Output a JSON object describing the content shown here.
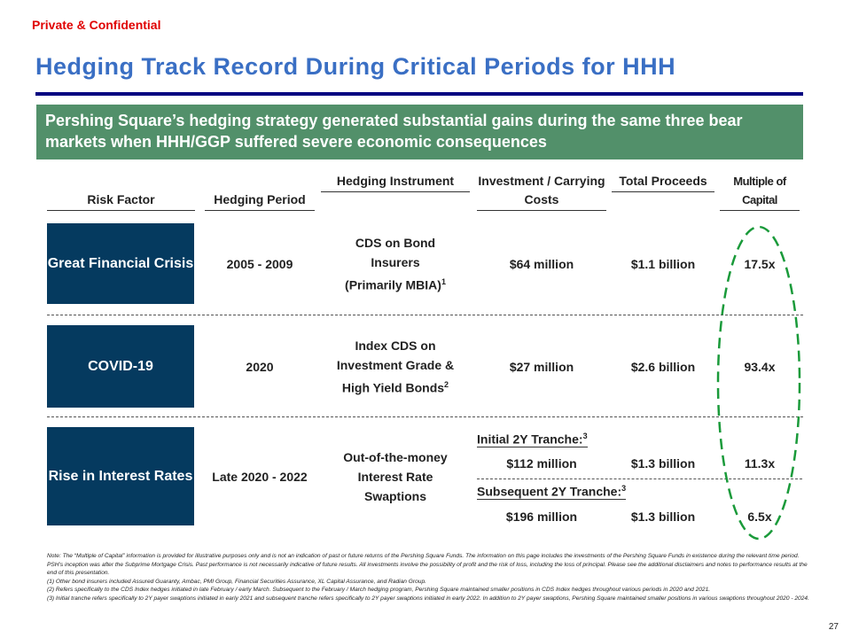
{
  "confidential": "Private & Confidential",
  "title": "Hedging Track Record During Critical Periods for HHH",
  "banner": "Pershing Square’s hedging strategy generated substantial gains during the same three bear markets when HHH/GGP suffered severe economic consequences",
  "headers": {
    "risk": "Risk Factor",
    "period": "Hedging Period",
    "instrument": "Hedging Instrument",
    "investment": "Investment / Carrying Costs",
    "proceeds": "Total Proceeds",
    "multiple": "Multiple of Capital"
  },
  "rows": [
    {
      "risk": "Great Financial Crisis",
      "period": "2005 - 2009",
      "instrument": "CDS on Bond Insurers",
      "instrument2": "(Primarily MBIA)",
      "note": "1",
      "investment": "$64 million",
      "proceeds": "$1.1 billion",
      "multiple": "17.5x"
    },
    {
      "risk": "COVID-19",
      "period": "2020",
      "instrument": "Index CDS on Investment Grade & High Yield Bonds",
      "note": "2",
      "investment": "$27 million",
      "proceeds": "$2.6 billion",
      "multiple": "93.4x"
    },
    {
      "risk": "Rise in Interest Rates",
      "period": "Late 2020 - 2022",
      "instrument": "Out-of-the-money Interest Rate Swaptions",
      "tranches": [
        {
          "label": "Initial 2Y Tranche:",
          "note": "3",
          "investment": "$112 million",
          "proceeds": "$1.3 billion",
          "multiple": "11.3x"
        },
        {
          "label": "Subsequent 2Y Tranche:",
          "note": "3",
          "investment": "$196 million",
          "proceeds": "$1.3 billion",
          "multiple": "6.5x"
        }
      ]
    }
  ],
  "notes": [
    "Note: The “Multiple of Capital” information is provided for illustrative purposes only and is not an indication of past or future returns of the Pershing Square Funds.  The information on this page includes the investments of the Pershing Square Funds in existence during the relevant time period. PSH’s inception was after the Subprime Mortgage Crisis. Past performance is not necessarily indicative of future results. All investments involve the possibility of profit and the risk of loss, including the loss of principal. Please see the additional disclaimers and notes to performance results at the end of this presentation.",
    "(1) Other bond insurers included Assured Guaranty, Ambac, PMI Group, Financial Securities Assurance, XL Capital Assurance, and Radian Group.",
    "(2) Refers specifically to the CDS Index hedges initiated in late February / early March. Subsequent to the February / March hedging program, Pershing Square maintained smaller positions in CDS Index hedges throughout various periods in 2020 and 2021.",
    "(3) Initial tranche refers specifically to 2Y payer swaptions initiated in early 2021 and subsequent tranche refers specifically to 2Y payer swaptions initiated in early 2022. In addition to 2Y payer swaptions, Pershing Square maintained smaller positions in various swaptions throughout 2020 - 2024."
  ],
  "page_number": "27",
  "colors": {
    "title": "#3a6fc4",
    "banner": "#52906a",
    "box": "#053a5f",
    "highlight": "#1a9a3a",
    "confidential": "#e00000"
  }
}
